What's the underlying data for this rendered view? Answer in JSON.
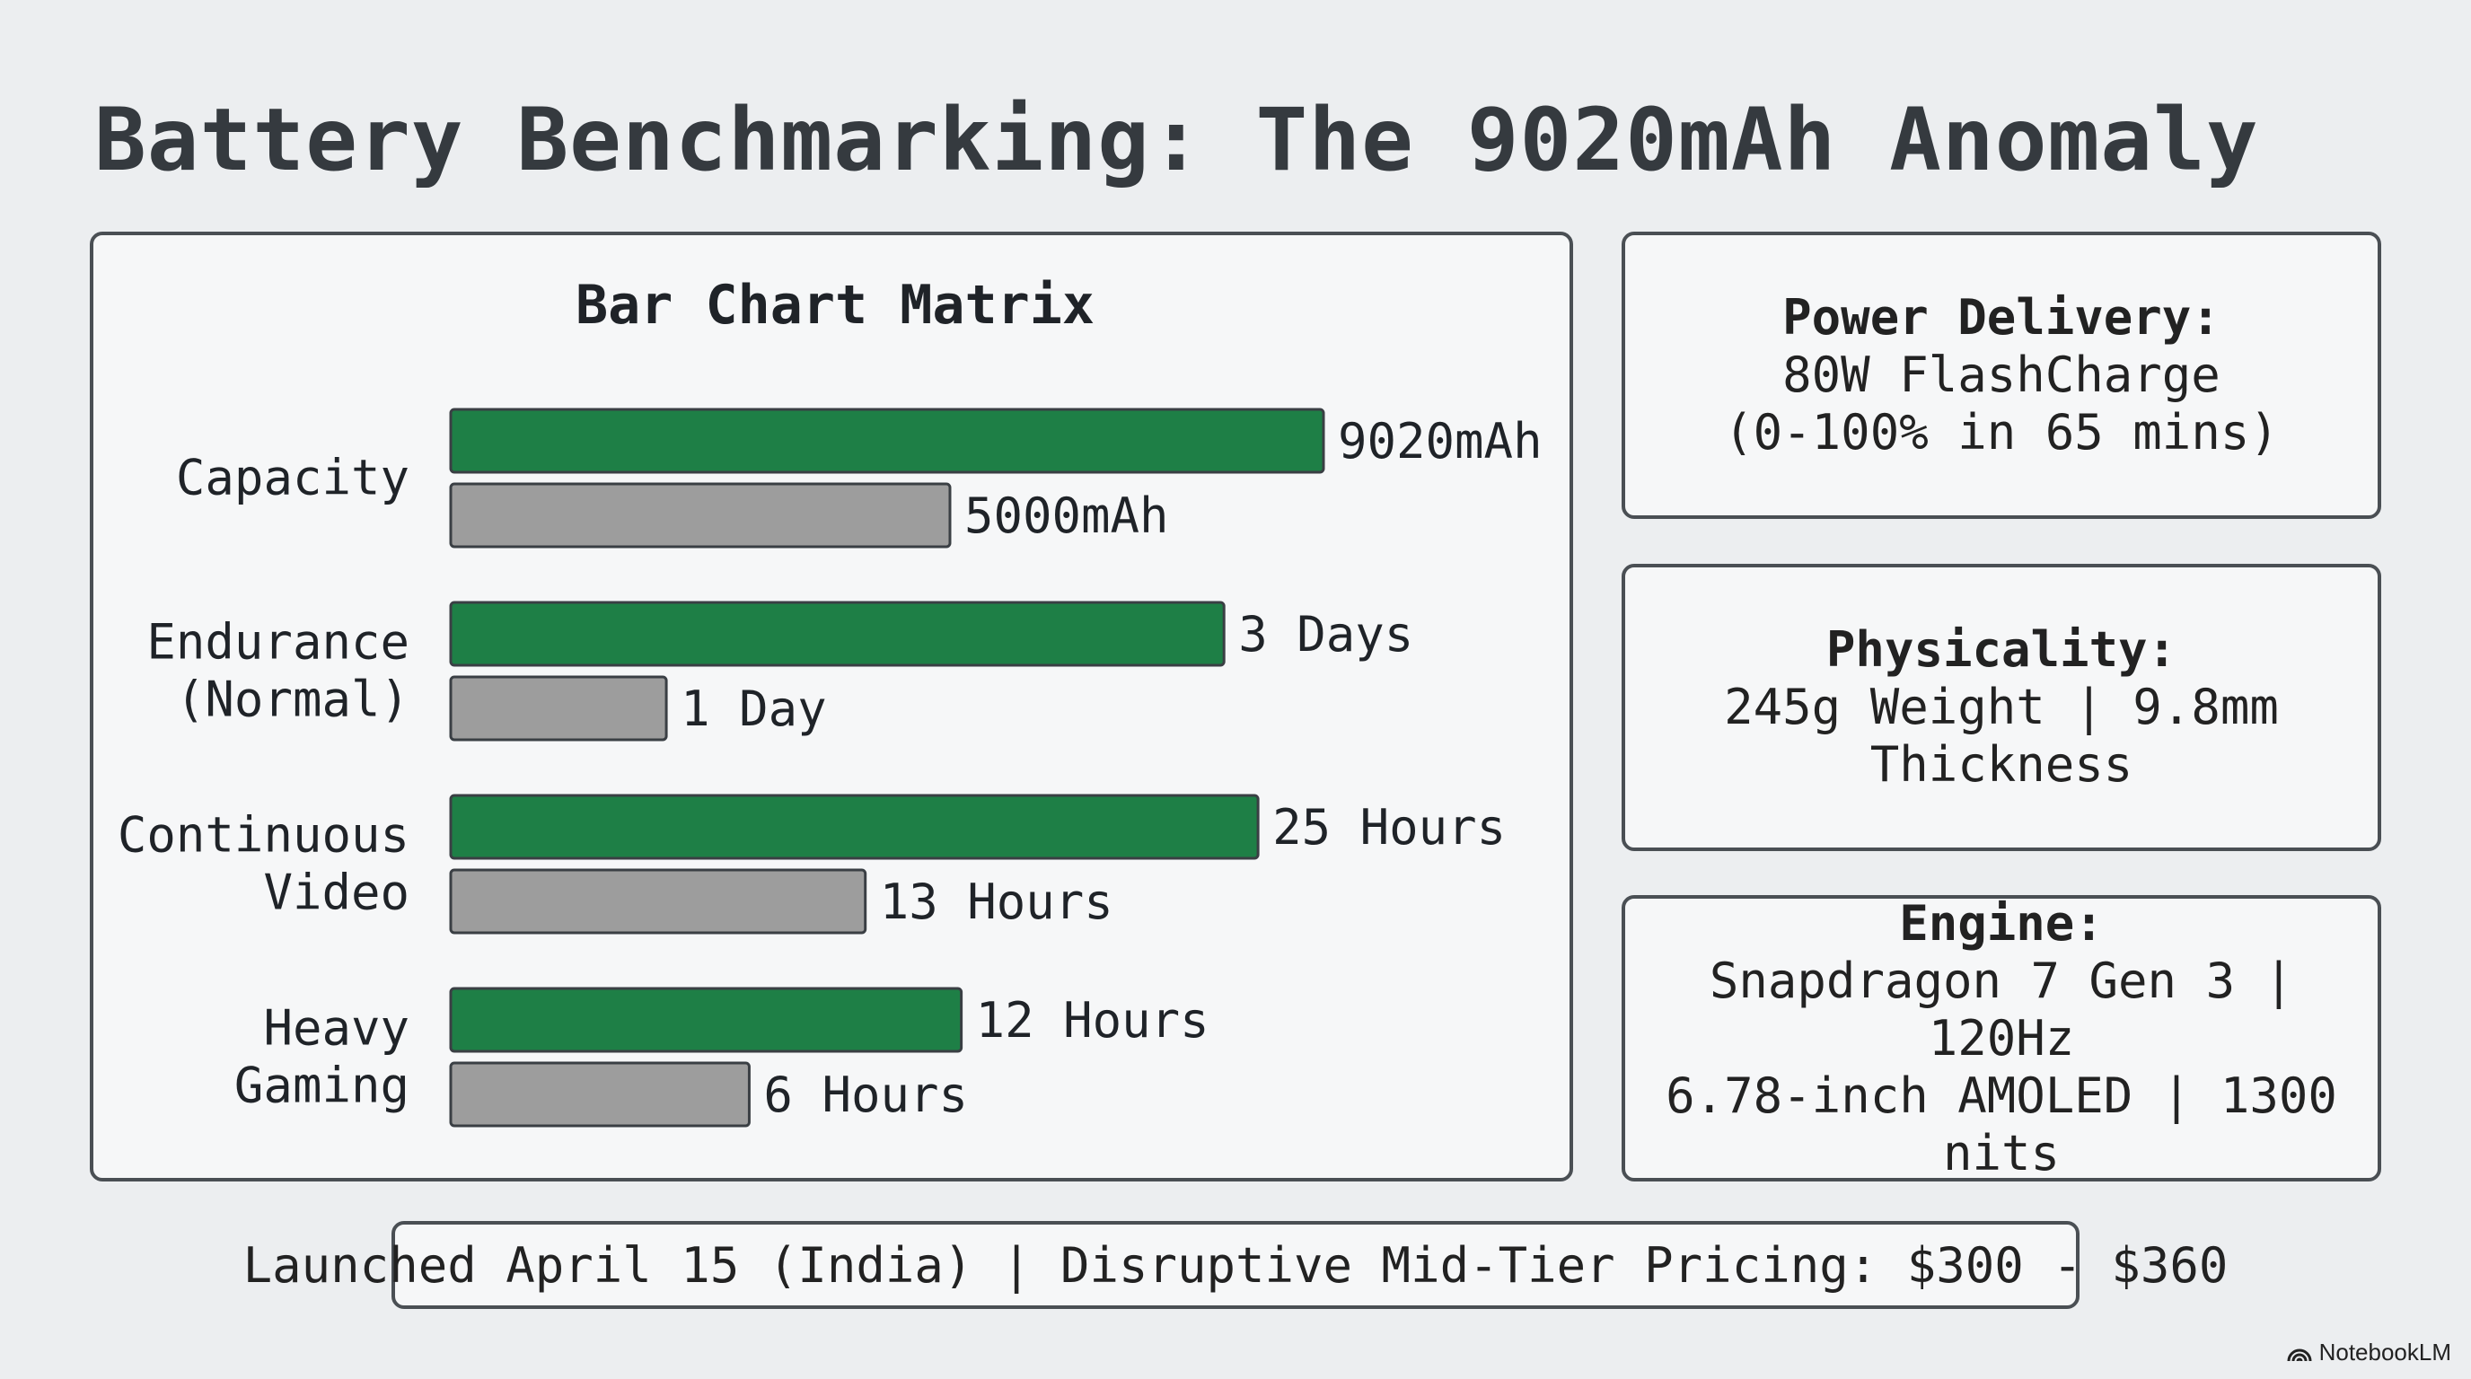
{
  "slide": {
    "title": "Battery Benchmarking: The 9020mAh Anomaly",
    "footer": "Launched April 15 (India) | Disruptive Mid-Tier Pricing: $300 - $360",
    "brand": "NotebookLM"
  },
  "cards": {
    "power": {
      "title": "Power Delivery:",
      "line1": "80W FlashCharge",
      "line2": "(0-100% in 65 mins)"
    },
    "physicality": {
      "title": "Physicality:",
      "line1": "245g Weight | 9.8mm Thickness"
    },
    "engine": {
      "title": "Engine:",
      "line1": "Snapdragon 7 Gen 3 | 120Hz",
      "line2": "6.78-inch AMOLED | 1300 nits"
    }
  },
  "colors": {
    "primary_bar": "#1e7f46",
    "secondary_bar": "#9d9d9d",
    "bar_outline": "#3a3f44"
  },
  "chart_data": {
    "type": "bar",
    "orientation": "horizontal",
    "title": "Bar Chart Matrix",
    "categories": [
      {
        "lines": [
          "Capacity"
        ]
      },
      {
        "lines": [
          "Endurance",
          "(Normal)"
        ]
      },
      {
        "lines": [
          "Continuous",
          "Video"
        ]
      },
      {
        "lines": [
          "Heavy",
          "Gaming"
        ]
      }
    ],
    "series": [
      {
        "values": [
          1.0,
          0.886,
          0.925,
          0.585
        ],
        "labels": [
          "9020mAh",
          "3 Days",
          "25 Hours",
          "12 Hours"
        ]
      },
      {
        "values": [
          0.572,
          0.247,
          0.475,
          0.342
        ],
        "labels": [
          "5000mAh",
          "1 Day",
          "13 Hours",
          "6 Hours"
        ]
      }
    ],
    "grid": false,
    "axes_shown": false
  }
}
